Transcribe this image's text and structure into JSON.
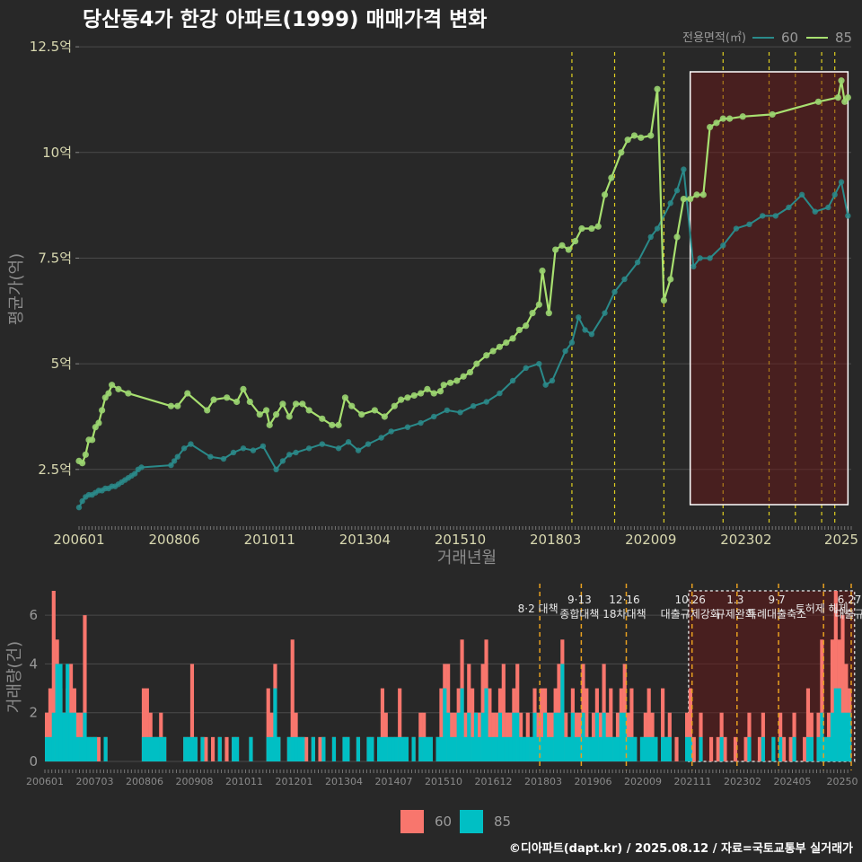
{
  "title": "당산동4가 한강 아파트(1999) 매매가격 변화",
  "footer": "©디아파트(dapt.kr) / 2025.08.12 / 자료=국토교통부 실거래가",
  "colors": {
    "background": "#282828",
    "s60_line": "#2a8a8a",
    "s85_line": "#a8e070",
    "s85_point": "#9ad470",
    "bar60": "#f8766d",
    "bar85": "#00bfc4",
    "highlight_stroke": "#ffffff",
    "policy_price": "#e0d020",
    "policy_volume": "#e8a020"
  },
  "chart_data": [
    {
      "type": "line",
      "name": "price",
      "title": "당산동4가 한강 아파트(1999) 매매가격 변화",
      "xlabel": "거래년월",
      "ylabel": "평균가(억)",
      "ylim": [
        1.2,
        12.8
      ],
      "xlim": [
        0,
        235
      ],
      "y_ticks": [
        2.5,
        5,
        7.5,
        10,
        12.5
      ],
      "y_tick_labels": [
        "2.5억",
        "5억",
        "7.5억",
        "10억",
        "12.5억"
      ],
      "x_ticks": [
        0,
        29,
        58,
        87,
        116,
        145,
        174,
        203,
        232
      ],
      "x_tick_labels": [
        "200601",
        "200806",
        "201011",
        "201304",
        "201510",
        "201803",
        "202009",
        "202302",
        "2025"
      ],
      "legend_title": "전용면적(㎡)",
      "legend_placement": "top-right",
      "highlight_period": [
        186,
        234
      ],
      "policy_lines": [
        150,
        163,
        178,
        196,
        210,
        218,
        226,
        230
      ],
      "series": [
        {
          "name": "85",
          "x": [
            0,
            1,
            2,
            3,
            4,
            5,
            6,
            7,
            8,
            9,
            10,
            12,
            15,
            28,
            30,
            33,
            39,
            41,
            45,
            48,
            50,
            52,
            55,
            57,
            58,
            60,
            62,
            64,
            66,
            68,
            70,
            74,
            77,
            79,
            81,
            83,
            86,
            90,
            93,
            96,
            98,
            100,
            102,
            104,
            106,
            108,
            110,
            111,
            113,
            115,
            117,
            119,
            121,
            124,
            126,
            128,
            130,
            132,
            134,
            136,
            138,
            140,
            141,
            143,
            145,
            147,
            149,
            151,
            153,
            156,
            158,
            160,
            162,
            165,
            167,
            169,
            171,
            174,
            176,
            178,
            180,
            182,
            184,
            186,
            188,
            190,
            192,
            194,
            196,
            198,
            202,
            211,
            225,
            231,
            232,
            233,
            234
          ],
          "y": [
            2.7,
            2.65,
            2.85,
            3.2,
            3.2,
            3.5,
            3.6,
            3.9,
            4.2,
            4.3,
            4.5,
            4.4,
            4.3,
            4.0,
            4.0,
            4.3,
            3.9,
            4.15,
            4.2,
            4.1,
            4.4,
            4.1,
            3.8,
            3.9,
            3.55,
            3.8,
            4.05,
            3.75,
            4.05,
            4.05,
            3.9,
            3.7,
            3.55,
            3.55,
            4.2,
            4.0,
            3.8,
            3.9,
            3.75,
            4.0,
            4.15,
            4.2,
            4.25,
            4.3,
            4.4,
            4.3,
            4.35,
            4.5,
            4.55,
            4.6,
            4.7,
            4.8,
            5.0,
            5.2,
            5.3,
            5.4,
            5.5,
            5.6,
            5.8,
            5.9,
            6.2,
            6.4,
            7.2,
            6.2,
            7.7,
            7.8,
            7.7,
            7.9,
            8.2,
            8.2,
            8.25,
            9.0,
            9.4,
            10.0,
            10.3,
            10.4,
            10.35,
            10.4,
            11.5,
            6.5,
            7.0,
            8.0,
            8.9,
            8.9,
            9.0,
            9.0,
            10.6,
            10.7,
            10.8,
            10.8,
            10.85,
            10.9,
            11.2,
            11.3,
            11.7,
            11.2,
            11.3
          ]
        },
        {
          "name": "60",
          "x": [
            0,
            1,
            2,
            3,
            4,
            5,
            6,
            7,
            8,
            9,
            10,
            11,
            12,
            13,
            14,
            15,
            16,
            17,
            18,
            19,
            28,
            29,
            30,
            32,
            34,
            40,
            44,
            47,
            50,
            53,
            56,
            60,
            62,
            64,
            66,
            70,
            74,
            79,
            82,
            85,
            88,
            92,
            95,
            100,
            104,
            108,
            112,
            116,
            120,
            124,
            128,
            132,
            136,
            140,
            142,
            144,
            148,
            150,
            152,
            154,
            156,
            160,
            163,
            166,
            170,
            174,
            176,
            180,
            182,
            184,
            187,
            189,
            192,
            196,
            200,
            204,
            208,
            212,
            216,
            220,
            224,
            228,
            230,
            232,
            234
          ],
          "y": [
            1.6,
            1.75,
            1.85,
            1.9,
            1.9,
            1.95,
            2.0,
            2.0,
            2.05,
            2.05,
            2.1,
            2.1,
            2.15,
            2.2,
            2.25,
            2.3,
            2.35,
            2.4,
            2.5,
            2.55,
            2.6,
            2.7,
            2.8,
            3.0,
            3.1,
            2.8,
            2.75,
            2.9,
            3.0,
            2.95,
            3.05,
            2.5,
            2.7,
            2.85,
            2.9,
            3.0,
            3.1,
            3.0,
            3.15,
            2.95,
            3.1,
            3.25,
            3.4,
            3.5,
            3.6,
            3.75,
            3.9,
            3.85,
            4.0,
            4.1,
            4.3,
            4.6,
            4.9,
            5.0,
            4.5,
            4.6,
            5.3,
            5.5,
            6.1,
            5.8,
            5.7,
            6.2,
            6.7,
            7.0,
            7.4,
            8.0,
            8.2,
            8.8,
            9.1,
            9.6,
            7.3,
            7.5,
            7.5,
            7.8,
            8.2,
            8.3,
            8.5,
            8.5,
            8.7,
            9.0,
            8.6,
            8.7,
            9.0,
            9.3,
            8.5
          ]
        }
      ]
    },
    {
      "type": "bar",
      "name": "volume",
      "xlabel": "",
      "ylabel": "거래량(건)",
      "ylim": [
        0,
        7
      ],
      "y_ticks": [
        0,
        2,
        4,
        6
      ],
      "x_tick_labels": [
        "200601",
        "200703",
        "200806",
        "200908",
        "201011",
        "201201",
        "201304",
        "201407",
        "201510",
        "201612",
        "201803",
        "201906",
        "202009",
        "202111",
        "202302",
        "202405",
        "20250"
      ],
      "legend_placement": "bottom",
      "annotations": [
        {
          "x": 143,
          "lines": [
            "8·2 대책"
          ]
        },
        {
          "x": 155,
          "lines": [
            "9·13",
            "종합대책"
          ]
        },
        {
          "x": 168,
          "lines": [
            "12·16",
            "18차대책"
          ]
        },
        {
          "x": 187,
          "lines": [
            "10.26",
            "대출규제강화"
          ]
        },
        {
          "x": 200,
          "lines": [
            "1.3",
            "규제완화"
          ]
        },
        {
          "x": 212,
          "lines": [
            "9·7",
            "특례대출축소"
          ]
        },
        {
          "x": 225,
          "lines": [
            "토허제 해제"
          ]
        },
        {
          "x": 233,
          "lines": [
            "6.27",
            "대출규"
          ]
        }
      ],
      "series": [
        {
          "name": "60",
          "values": [
            2,
            3,
            7,
            5,
            3,
            2,
            3,
            4,
            3,
            2,
            2,
            6,
            1,
            1,
            1,
            1,
            0,
            1,
            0,
            0,
            0,
            0,
            0,
            0,
            0,
            0,
            0,
            0,
            3,
            3,
            2,
            1,
            1,
            2,
            1,
            0,
            0,
            0,
            0,
            0,
            1,
            1,
            4,
            1,
            0,
            1,
            1,
            0,
            1,
            0,
            1,
            0,
            1,
            0,
            1,
            1,
            0,
            0,
            0,
            1,
            0,
            0,
            0,
            0,
            3,
            2,
            4,
            1,
            0,
            0,
            1,
            5,
            2,
            1,
            1,
            1,
            0,
            1,
            0,
            1,
            1,
            0,
            0,
            1,
            0,
            0,
            1,
            1,
            0,
            0,
            1,
            0,
            0,
            1,
            1,
            0,
            1,
            3,
            2,
            1,
            1,
            1,
            3,
            1,
            1,
            0,
            1,
            0,
            2,
            2,
            1,
            1,
            0,
            1,
            3,
            4,
            4,
            2,
            2,
            3,
            5,
            2,
            4,
            3,
            2,
            2,
            4,
            5,
            3,
            2,
            2,
            3,
            4,
            2,
            2,
            3,
            4,
            2,
            1,
            2,
            1,
            3,
            2,
            3,
            3,
            2,
            2,
            3,
            4,
            5,
            2,
            1,
            3,
            2,
            2,
            4,
            3,
            1,
            2,
            3,
            2,
            4,
            2,
            3,
            1,
            2,
            3,
            4,
            2,
            3,
            1,
            0,
            1,
            2,
            3,
            2,
            1,
            0,
            3,
            1,
            2,
            0,
            1,
            0,
            0,
            2,
            3,
            1,
            0,
            2,
            0,
            0,
            1,
            0,
            1,
            2,
            1,
            0,
            0,
            1,
            0,
            0,
            1,
            2,
            0,
            0,
            1,
            2,
            0,
            0,
            1,
            0,
            2,
            1,
            0,
            1,
            2,
            0,
            0,
            1,
            3,
            2,
            0,
            2,
            5,
            1,
            2,
            5,
            7,
            5,
            6,
            4,
            3
          ]
        },
        {
          "name": "85",
          "values": [
            1,
            1,
            2,
            4,
            4,
            2,
            4,
            2,
            2,
            1,
            1,
            2,
            1,
            1,
            1,
            0,
            0,
            1,
            0,
            0,
            0,
            0,
            0,
            0,
            0,
            0,
            0,
            0,
            1,
            1,
            1,
            1,
            1,
            1,
            1,
            0,
            0,
            0,
            0,
            0,
            1,
            1,
            1,
            1,
            0,
            1,
            0,
            0,
            0,
            0,
            1,
            0,
            0,
            0,
            1,
            1,
            0,
            0,
            0,
            1,
            0,
            0,
            0,
            0,
            1,
            1,
            3,
            1,
            0,
            0,
            1,
            1,
            1,
            1,
            1,
            0,
            0,
            1,
            0,
            0,
            1,
            0,
            0,
            1,
            0,
            0,
            1,
            1,
            0,
            0,
            1,
            0,
            0,
            1,
            1,
            0,
            1,
            1,
            1,
            1,
            1,
            1,
            1,
            1,
            1,
            0,
            1,
            0,
            1,
            1,
            1,
            1,
            0,
            1,
            1,
            3,
            2,
            1,
            1,
            2,
            3,
            1,
            2,
            1,
            2,
            1,
            2,
            3,
            1,
            1,
            1,
            2,
            1,
            1,
            1,
            2,
            2,
            1,
            1,
            1,
            1,
            2,
            1,
            1,
            2,
            1,
            1,
            2,
            2,
            4,
            1,
            1,
            2,
            1,
            1,
            2,
            1,
            1,
            1,
            2,
            1,
            2,
            1,
            1,
            1,
            1,
            2,
            2,
            1,
            1,
            1,
            0,
            1,
            1,
            1,
            1,
            1,
            0,
            1,
            1,
            1,
            0,
            0,
            0,
            0,
            1,
            1,
            0,
            0,
            1,
            0,
            0,
            0,
            0,
            0,
            1,
            0,
            0,
            0,
            0,
            0,
            0,
            0,
            1,
            0,
            0,
            0,
            1,
            0,
            0,
            1,
            0,
            1,
            0,
            0,
            0,
            1,
            0,
            0,
            0,
            1,
            1,
            0,
            1,
            2,
            1,
            1,
            2,
            3,
            3,
            2,
            2,
            2
          ]
        }
      ]
    }
  ]
}
